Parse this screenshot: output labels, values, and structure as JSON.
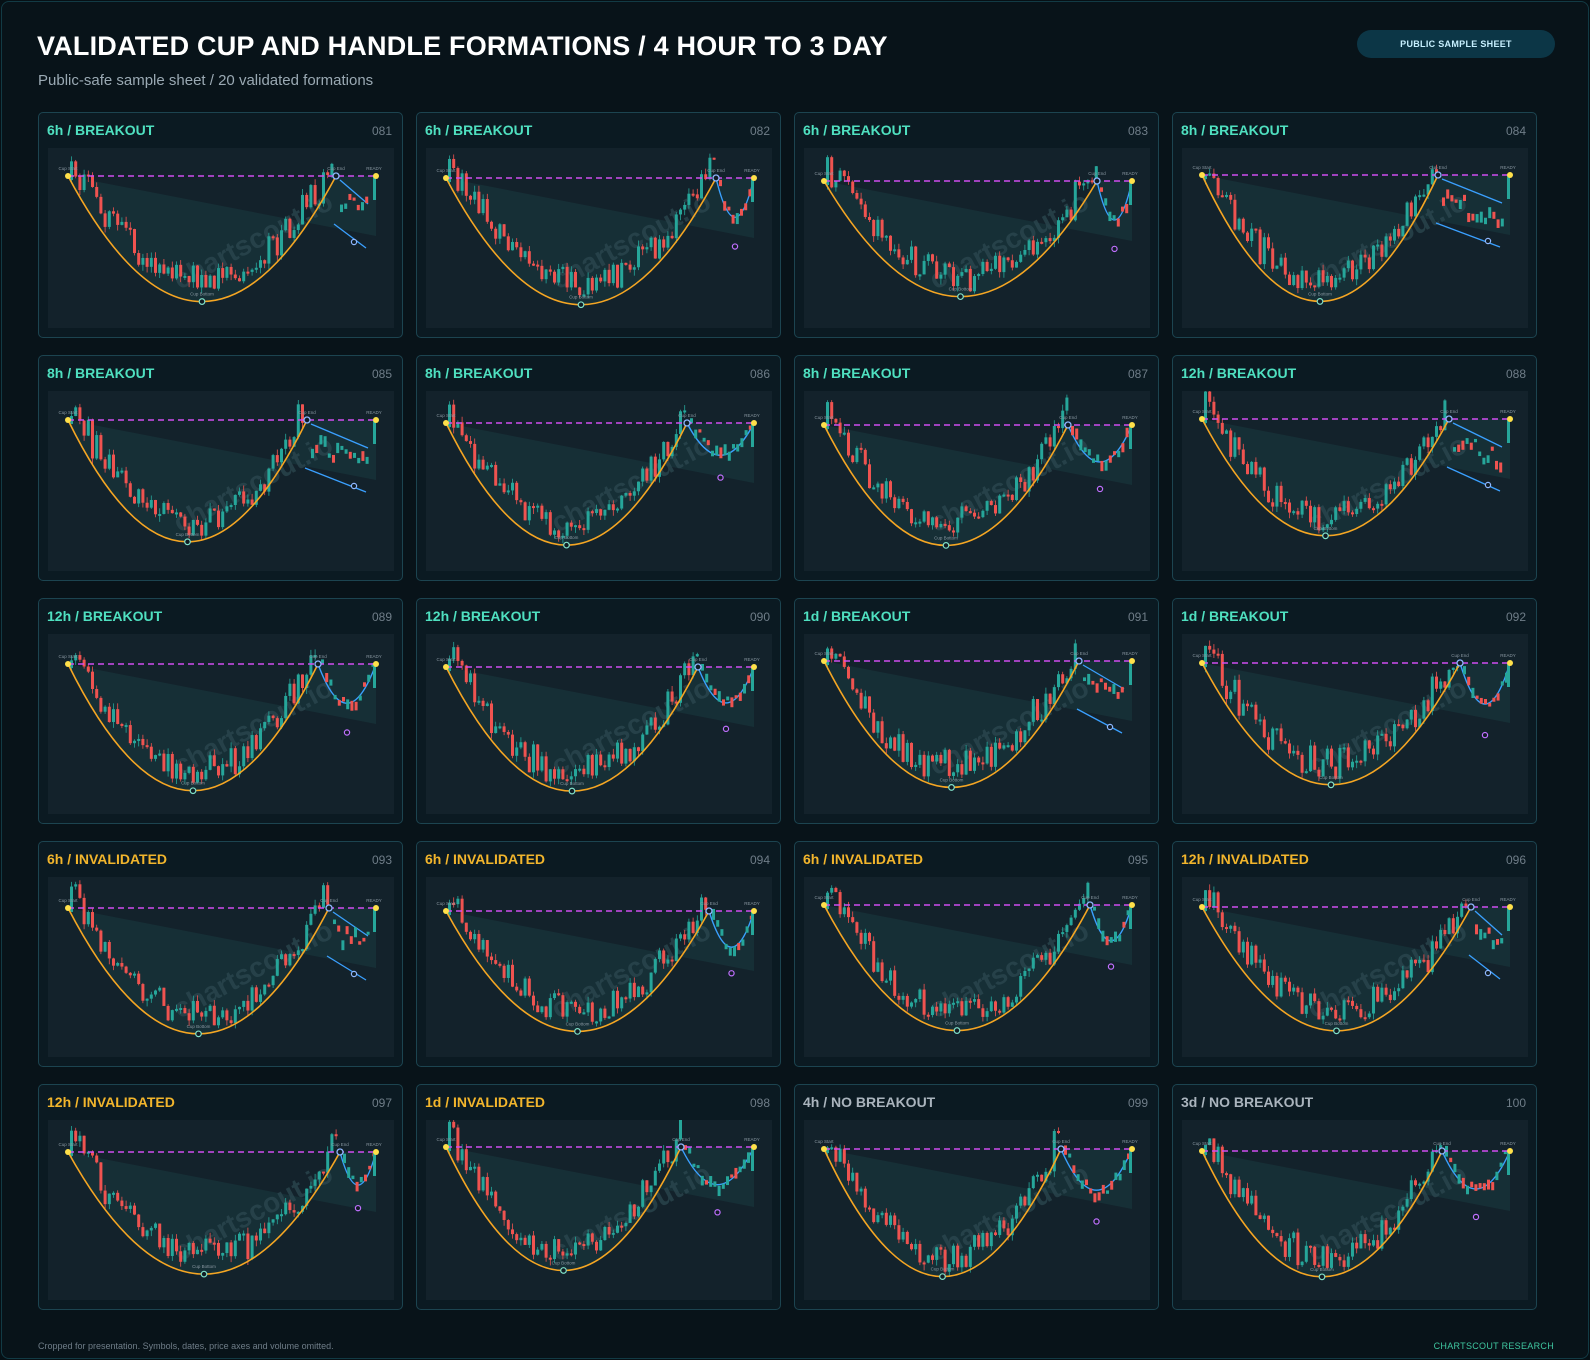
{
  "header": {
    "title": "VALIDATED CUP AND HANDLE FORMATIONS / 4 HOUR TO 3 DAY",
    "subtitle": "Public-safe sample sheet / 20 validated formations",
    "badge": "PUBLIC SAMPLE SHEET"
  },
  "footer": {
    "note": "Cropped for presentation. Symbols, dates, price axes and volume omitted.",
    "brand": "CHARTSCOUT RESEARCH"
  },
  "watermark": "chartscout.io",
  "marker_labels": {
    "cup_start": "Cup Start",
    "cup_end": "Cup End",
    "cup_bottom": "Cup Bottom",
    "handle_bottom": "Handle Bottom",
    "ready": "READY"
  },
  "colors": {
    "background": "#081319",
    "card_border": "#1c4450",
    "plot_bg": "#13222b",
    "breakout": "#4fe0c0",
    "invalidated": "#f2b52c",
    "no_breakout": "#aab4bd",
    "cup_curve": "#f5a623",
    "handle_curve": "#3aa0ff",
    "resistance_line": "#d04df0",
    "candle_up": "#26a69a",
    "candle_down": "#ef5350",
    "marker_yellow": "#ffe04a",
    "marker_blue": "#8fb8ff"
  },
  "chart_data": [
    {
      "type": "candlestick",
      "timeframe": "6h",
      "status": "BREAKOUT",
      "id": "081",
      "handle": "channel",
      "depth": 0.86,
      "end": 0.72
    },
    {
      "type": "candlestick",
      "timeframe": "6h",
      "status": "BREAKOUT",
      "id": "082",
      "handle": "curve",
      "depth": 0.88,
      "end": 0.88
    },
    {
      "type": "candlestick",
      "timeframe": "6h",
      "status": "BREAKOUT",
      "id": "083",
      "handle": "curve",
      "depth": 0.82,
      "end": 0.62
    },
    {
      "type": "candlestick",
      "timeframe": "8h",
      "status": "BREAKOUT",
      "id": "084",
      "handle": "channel",
      "depth": 0.86,
      "end": 0.8
    },
    {
      "type": "candlestick",
      "timeframe": "8h",
      "status": "BREAKOUT",
      "id": "085",
      "handle": "channel",
      "depth": 0.84,
      "end": 0.72
    },
    {
      "type": "candlestick",
      "timeframe": "8h",
      "status": "BREAKOUT",
      "id": "086",
      "handle": "curve",
      "depth": 0.86,
      "end": 0.9
    },
    {
      "type": "candlestick",
      "timeframe": "8h",
      "status": "BREAKOUT",
      "id": "087",
      "handle": "curve",
      "depth": 0.86,
      "end": 0.8
    },
    {
      "type": "candlestick",
      "timeframe": "12h",
      "status": "BREAKOUT",
      "id": "088",
      "handle": "channel",
      "depth": 0.8,
      "end": 0.78
    },
    {
      "type": "candlestick",
      "timeframe": "12h",
      "status": "BREAKOUT",
      "id": "089",
      "handle": "curve",
      "depth": 0.88,
      "end": 0.86
    },
    {
      "type": "candlestick",
      "timeframe": "12h",
      "status": "BREAKOUT",
      "id": "090",
      "handle": "curve",
      "depth": 0.88,
      "end": 0.9
    },
    {
      "type": "candlestick",
      "timeframe": "1d",
      "status": "BREAKOUT",
      "id": "091",
      "handle": "channel",
      "depth": 0.86,
      "end": 0.68
    },
    {
      "type": "candlestick",
      "timeframe": "1d",
      "status": "BREAKOUT",
      "id": "092",
      "handle": "curve",
      "depth": 0.84,
      "end": 0.84
    },
    {
      "type": "candlestick",
      "timeframe": "6h",
      "status": "INVALIDATED",
      "id": "093",
      "handle": "channel",
      "depth": 0.88,
      "end": 0.84
    },
    {
      "type": "candlestick",
      "timeframe": "6h",
      "status": "INVALIDATED",
      "id": "094",
      "handle": "curve",
      "depth": 0.86,
      "end": 0.76
    },
    {
      "type": "candlestick",
      "timeframe": "6h",
      "status": "INVALIDATED",
      "id": "095",
      "handle": "curve",
      "depth": 0.86,
      "end": 0.88
    },
    {
      "type": "candlestick",
      "timeframe": "12h",
      "status": "INVALIDATED",
      "id": "096",
      "handle": "channel",
      "depth": 0.86,
      "end": 0.78
    },
    {
      "type": "candlestick",
      "timeframe": "12h",
      "status": "INVALIDATED",
      "id": "097",
      "handle": "curve",
      "depth": 0.86,
      "end": 0.78
    },
    {
      "type": "candlestick",
      "timeframe": "1d",
      "status": "INVALIDATED",
      "id": "098",
      "handle": "curve",
      "depth": 0.84,
      "end": 0.82
    },
    {
      "type": "candlestick",
      "timeframe": "4h",
      "status": "NO BREAKOUT",
      "id": "099",
      "handle": "curve",
      "depth": 0.88,
      "end": 0.82
    },
    {
      "type": "candlestick",
      "timeframe": "3d",
      "status": "NO BREAKOUT",
      "id": "100",
      "handle": "curve",
      "depth": 0.88,
      "end": 0.88
    }
  ]
}
